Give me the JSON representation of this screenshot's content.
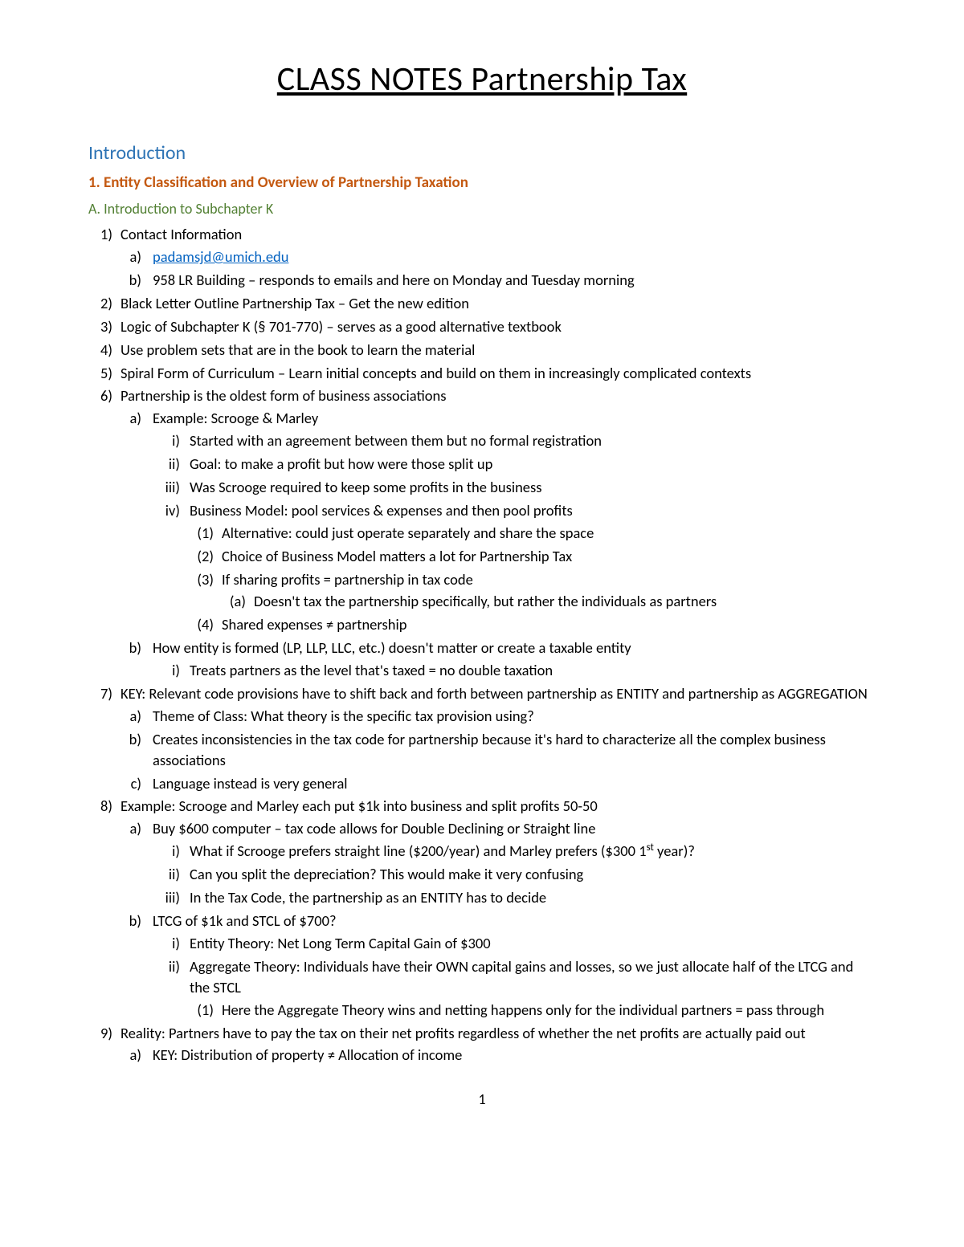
{
  "title": "CLASS NOTES Partnership Tax",
  "sections": {
    "intro": "Introduction",
    "h2": "1. Entity Classification and Overview of Partnership Taxation",
    "h3": "A. Introduction to Subchapter K"
  },
  "email": "padamsjd@umich.edu",
  "items": {
    "i1": "Contact Information",
    "i1b": "958 LR Building – responds to emails and here on Monday and Tuesday morning",
    "i2": "Black Letter Outline Partnership Tax – Get the new edition",
    "i3": "Logic of Subchapter K (§ 701-770) – serves as a good alternative textbook",
    "i4": "Use problem sets that are in the book to learn the material",
    "i5": "Spiral Form of Curriculum – Learn initial concepts and build on them in increasingly complicated contexts",
    "i6": "Partnership is the oldest form of business associations",
    "i6a": "Example: Scrooge & Marley",
    "i6a1": "Started with an agreement between them but no formal registration",
    "i6a2": "Goal: to make a profit but how were those split up",
    "i6a3": "Was Scrooge required to keep some profits in the business",
    "i6a4": "Business Model: pool services & expenses and then pool profits",
    "i6a4_1": "Alternative: could just operate separately and share the space",
    "i6a4_2": "Choice of Business Model matters a lot for Partnership Tax",
    "i6a4_3": "If sharing profits = partnership in tax code",
    "i6a4_3a": "Doesn't tax the partnership specifically, but rather the individuals as partners",
    "i6a4_4": "Shared expenses ≠ partnership",
    "i6b": "How entity is formed (LP, LLP, LLC, etc.) doesn't matter or create a taxable entity",
    "i6b1": "Treats partners as the level that's taxed = no double taxation",
    "i7": "KEY: Relevant code provisions have to shift back and forth between partnership as ENTITY and partnership as AGGREGATION",
    "i7a": "Theme of Class: What theory is the specific tax provision using?",
    "i7b": "Creates inconsistencies in the tax code for partnership because it's hard to characterize all the complex business associations",
    "i7c": "Language instead is very general",
    "i8": "Example: Scrooge and Marley each put $1k into business and split profits 50-50",
    "i8a": "Buy $600 computer – tax code allows for Double Declining or Straight line",
    "i8a1_pre": "What if Scrooge prefers straight line ($200/year) and Marley prefers ($300 1",
    "i8a1_sup": "st",
    "i8a1_post": " year)?",
    "i8a2": "Can you split the depreciation? This would make it very confusing",
    "i8a3": "In the Tax Code, the partnership as an ENTITY has to decide",
    "i8b": "LTCG of $1k and STCL of $700?",
    "i8b1": "Entity Theory: Net Long Term Capital Gain of $300",
    "i8b2": "Aggregate Theory: Individuals have their OWN capital gains and losses, so we just allocate half of the LTCG and the STCL",
    "i8b2_1": "Here the Aggregate Theory wins and netting happens only for the individual partners = pass through",
    "i9": "Reality: Partners have to pay the tax on their net profits regardless of whether the net profits are actually paid out",
    "i9a": "KEY: Distribution of property ≠ Allocation of income"
  },
  "markers": {
    "n1": "1)",
    "n2": "2)",
    "n3": "3)",
    "n4": "4)",
    "n5": "5)",
    "n6": "6)",
    "n7": "7)",
    "n8": "8)",
    "n9": "9)",
    "a": "a)",
    "b": "b)",
    "c": "c)",
    "r1": "i)",
    "r2": "ii)",
    "r3": "iii)",
    "r4": "iv)",
    "p1": "(1)",
    "p2": "(2)",
    "p3": "(3)",
    "p4": "(4)",
    "ap1": "(a)"
  },
  "pageNumber": "1",
  "colors": {
    "h1": "#2e74b5",
    "h2": "#c45911",
    "h3": "#538135",
    "link": "#0563c1",
    "text": "#000000",
    "bg": "#ffffff"
  }
}
